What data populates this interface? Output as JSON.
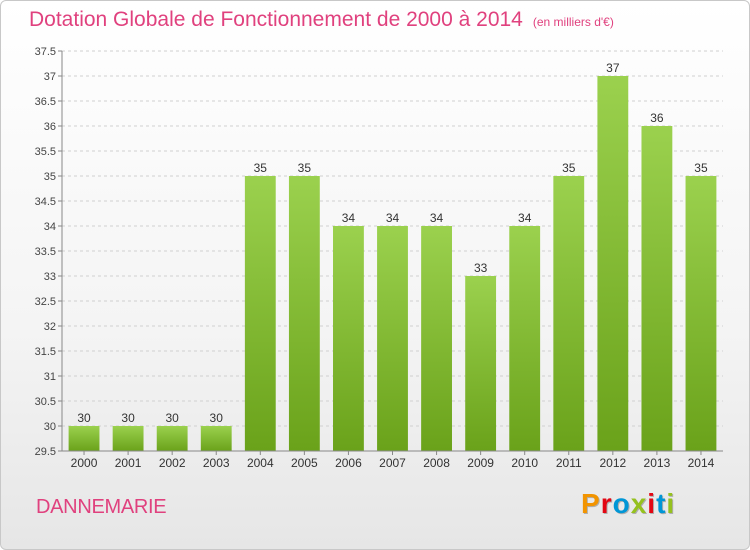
{
  "header": {
    "title": "Dotation Globale de Fonctionnement de 2000 à 2014",
    "unit_note": "(en milliers d'€)"
  },
  "footer": {
    "commune": "DANNEMARIE",
    "logo_text": "Proxiti",
    "logo_colors": [
      "#f29400",
      "#e30613",
      "#0096d6",
      "#95c11f",
      "#e30613",
      "#0096d6",
      "#95c11f"
    ]
  },
  "colors": {
    "title": "#e0417e",
    "bar_light": "#9bd14e",
    "bar_dark": "#6aa21a",
    "grid": "#d0d0d0",
    "axis": "#888888"
  },
  "chart_data": {
    "type": "bar",
    "categories": [
      "2000",
      "2001",
      "2002",
      "2003",
      "2004",
      "2005",
      "2006",
      "2007",
      "2008",
      "2009",
      "2010",
      "2011",
      "2012",
      "2013",
      "2014"
    ],
    "values": [
      30,
      30,
      30,
      30,
      35,
      35,
      34,
      34,
      34,
      33,
      34,
      35,
      37,
      36,
      35
    ],
    "ylim": [
      29.5,
      37.5
    ],
    "yticks": [
      "29.5",
      "30",
      "30.5",
      "31",
      "31.5",
      "32",
      "32.5",
      "33",
      "33.5",
      "34",
      "34.5",
      "35",
      "35.5",
      "36",
      "36.5",
      "37",
      "37.5"
    ],
    "grid": true,
    "title": "Dotation Globale de Fonctionnement de 2000 à 2014",
    "xlabel": "",
    "ylabel": ""
  }
}
